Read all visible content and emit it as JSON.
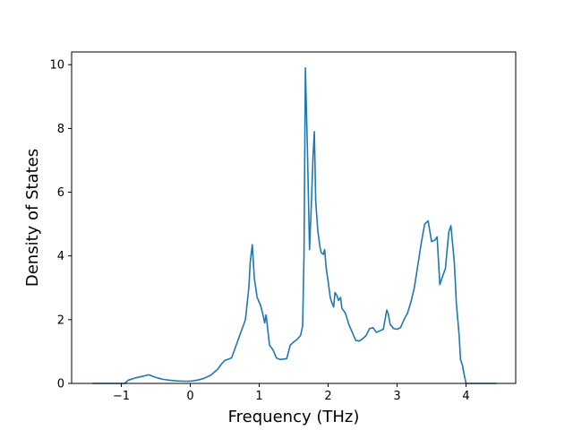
{
  "chart_data": {
    "type": "line",
    "title": "",
    "xlabel": "Frequency (THz)",
    "ylabel": "Density of States",
    "xlim": [
      -1.72,
      4.72
    ],
    "ylim": [
      0,
      10.4
    ],
    "xticks": [
      -1,
      0,
      1,
      2,
      3,
      4
    ],
    "xtick_labels": [
      "−1",
      "0",
      "1",
      "2",
      "3",
      "4"
    ],
    "yticks": [
      0,
      2,
      4,
      6,
      8,
      10
    ],
    "ytick_labels": [
      "0",
      "2",
      "4",
      "6",
      "8",
      "10"
    ],
    "grid": false,
    "legend": "none",
    "color": "#1f77b4",
    "series": [
      {
        "x": [
          -1.42,
          -0.95,
          -0.9,
          -0.8,
          -0.7,
          -0.6,
          -0.55,
          -0.5,
          -0.45,
          -0.4,
          -0.3,
          -0.2,
          -0.1,
          0.0,
          0.1,
          0.2,
          0.3,
          0.4,
          0.45,
          0.5,
          0.55,
          0.6,
          0.65,
          0.7,
          0.75,
          0.8,
          0.83,
          0.85,
          0.87,
          0.9,
          0.93,
          0.97,
          1.0,
          1.02,
          1.05,
          1.08,
          1.1,
          1.15,
          1.2,
          1.25,
          1.3,
          1.35,
          1.4,
          1.45,
          1.5,
          1.55,
          1.6,
          1.63,
          1.65,
          1.67,
          1.7,
          1.73,
          1.76,
          1.78,
          1.8,
          1.82,
          1.85,
          1.88,
          1.9,
          1.93,
          1.95,
          1.97,
          2.0,
          2.03,
          2.05,
          2.08,
          2.1,
          2.13,
          2.15,
          2.18,
          2.2,
          2.22,
          2.25,
          2.28,
          2.3,
          2.35,
          2.4,
          2.45,
          2.5,
          2.55,
          2.6,
          2.65,
          2.7,
          2.75,
          2.8,
          2.85,
          2.87,
          2.9,
          2.95,
          3.0,
          3.05,
          3.1,
          3.15,
          3.2,
          3.25,
          3.3,
          3.35,
          3.4,
          3.45,
          3.5,
          3.55,
          3.58,
          3.62,
          3.65,
          3.7,
          3.75,
          3.78,
          3.8,
          3.83,
          3.86,
          3.9,
          3.92,
          3.95,
          3.97,
          4.0,
          4.1,
          4.2,
          4.3,
          4.44
        ],
        "y": [
          0,
          0.0,
          0.1,
          0.17,
          0.22,
          0.27,
          0.23,
          0.19,
          0.16,
          0.13,
          0.1,
          0.08,
          0.07,
          0.07,
          0.1,
          0.16,
          0.26,
          0.45,
          0.6,
          0.72,
          0.76,
          0.8,
          1.1,
          1.4,
          1.7,
          2.0,
          2.6,
          3.0,
          3.8,
          4.35,
          3.3,
          2.7,
          2.55,
          2.45,
          2.2,
          1.9,
          2.15,
          1.2,
          1.05,
          0.8,
          0.75,
          0.76,
          0.78,
          1.2,
          1.3,
          1.38,
          1.5,
          1.8,
          4.0,
          9.9,
          7.3,
          4.2,
          5.8,
          7.1,
          7.9,
          5.7,
          4.8,
          4.3,
          4.1,
          4.05,
          4.2,
          3.65,
          3.2,
          2.7,
          2.55,
          2.4,
          2.85,
          2.75,
          2.6,
          2.7,
          2.35,
          2.3,
          2.2,
          2.0,
          1.85,
          1.6,
          1.35,
          1.33,
          1.4,
          1.5,
          1.72,
          1.75,
          1.6,
          1.65,
          1.7,
          2.3,
          2.2,
          1.85,
          1.72,
          1.7,
          1.75,
          2.0,
          2.2,
          2.55,
          3.0,
          3.7,
          4.4,
          5.0,
          5.1,
          4.45,
          4.5,
          4.6,
          3.1,
          3.3,
          3.6,
          4.75,
          4.95,
          4.5,
          3.8,
          2.5,
          1.5,
          0.75,
          0.55,
          0.3,
          0.0,
          0,
          0,
          0,
          0
        ]
      }
    ]
  }
}
